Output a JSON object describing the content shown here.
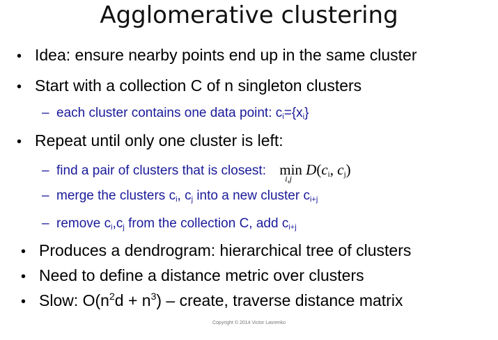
{
  "title": "Agglomerative clustering",
  "bullet_glyph": "•",
  "dash_glyph": "–",
  "items": [
    {
      "text": "Idea: ensure nearby points end up in the same cluster"
    },
    {
      "text": "Start with a collection C of n singleton clusters"
    },
    {
      "text_a": "each cluster contains one data point: c",
      "sub1": "i",
      "text_b": "={x",
      "sub2": "i",
      "text_c": "}"
    },
    {
      "text": "Repeat until only one cluster is left:"
    },
    {
      "text": "find a pair of clusters that is closest:",
      "math_op": "min",
      "math_op_sub": "i,j",
      "math_func": "D",
      "math_arg1": "c",
      "math_arg1_sub": "i",
      "math_arg2": "c",
      "math_arg2_sub": "j"
    },
    {
      "text_a": "merge the clusters c",
      "sub1": "i",
      "text_b": ", c",
      "sub2": "j",
      "text_c": " into a new cluster c",
      "sub3": "i+j"
    },
    {
      "text_a": "remove c",
      "sub1": "i",
      "text_b": ",c",
      "sub2": "j",
      "text_c": " from the collection C, add c",
      "sub3": "i+j"
    },
    {
      "text": "Produces a dendrogram: hierarchical tree of clusters"
    },
    {
      "text": "Need to define a distance metric over clusters"
    },
    {
      "text_a": "Slow: O(n",
      "sup1": "2",
      "text_b": "d + n",
      "sup2": "3",
      "text_c": ") – create, traverse distance matrix"
    }
  ],
  "copyright": "Copyright © 2014 Victor Lavrenko"
}
